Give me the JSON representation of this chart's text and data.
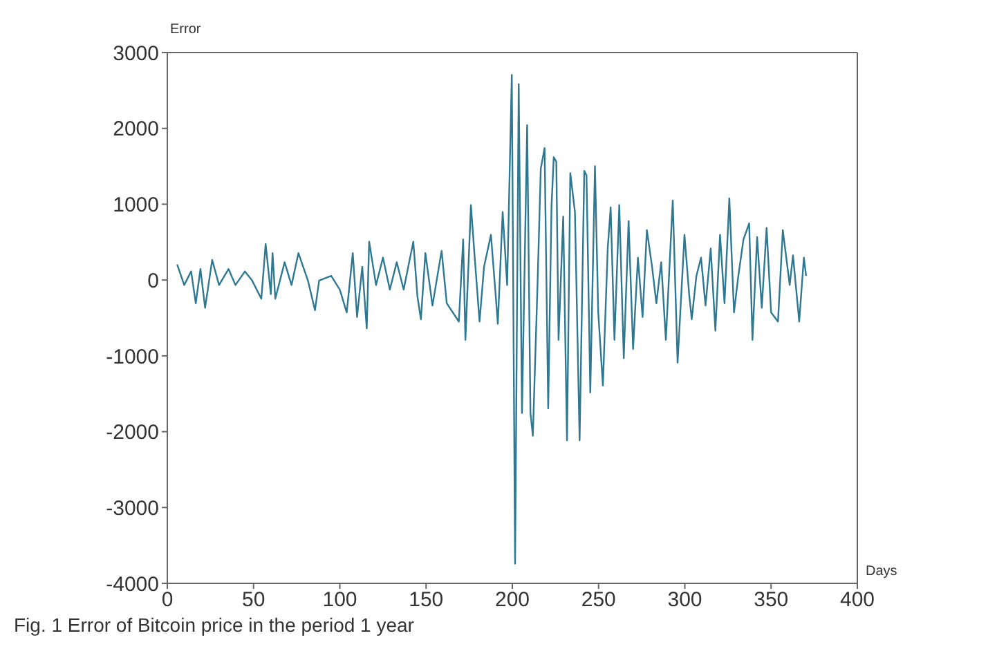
{
  "chart_data": {
    "type": "line",
    "xlabel": "Days",
    "ylabel": "Error",
    "annotations": [
      "Fig. 1 Error of Bitcoin price in the period 1 year"
    ],
    "x": [
      5.7,
      9.8,
      13.8,
      16.5,
      19.2,
      21.9,
      26,
      30,
      35.5,
      39.5,
      45,
      49,
      54.5,
      57,
      60,
      61,
      62.6,
      68,
      72,
      76,
      81.5,
      85.6,
      88,
      95,
      100,
      104,
      107.5,
      110,
      113,
      115.6,
      117,
      121,
      125,
      129,
      133,
      137,
      142.6,
      145,
      147,
      149.6,
      153.7,
      159,
      162,
      169,
      171.5,
      172.8,
      176,
      178,
      181,
      183.6,
      187.6,
      190.3,
      191.6,
      194.4,
      197,
      199.7,
      201.6,
      203.7,
      205.6,
      208.6,
      210.5,
      211.9,
      214.6,
      216.5,
      218.7,
      220.8,
      222.7,
      224,
      225.5,
      226.8,
      229.5,
      231.7,
      233.6,
      236.3,
      239,
      241.7,
      243,
      245.2,
      247.9,
      249.8,
      252.5,
      255.3,
      257,
      259.2,
      262,
      264.6,
      267.4,
      270,
      272.8,
      275.5,
      278,
      281,
      283.5,
      286.3,
      289,
      293,
      295.8,
      299.8,
      302.5,
      304,
      306.7,
      309.4,
      312,
      315,
      317.7,
      320.4,
      323,
      325.8,
      328.5,
      331,
      334,
      337.3,
      339.2,
      341.9,
      344.6,
      347.4,
      350,
      354,
      356.8,
      360.8,
      362.7,
      366.3,
      369,
      370.3
    ],
    "series": [
      {
        "color": "#2f7891",
        "values": [
          205,
          -66,
          114,
          -307,
          145,
          -367,
          265,
          -66,
          145,
          -66,
          114,
          0,
          -247,
          476,
          -187,
          355,
          -247,
          235,
          -66,
          355,
          -6,
          -398,
          -6,
          54,
          -127,
          -428,
          355,
          -488,
          175,
          -639,
          506,
          -66,
          295,
          -127,
          235,
          -127,
          506,
          -217,
          -518,
          355,
          -337,
          385,
          -307,
          -548,
          536,
          -789,
          988,
          355,
          -548,
          175,
          596,
          -187,
          -578,
          898,
          -66,
          2705,
          -3740,
          2584,
          -1753,
          2042,
          -1753,
          -2054,
          -66,
          1470,
          1741,
          -1693,
          958,
          1620,
          1560,
          -789,
          837,
          -2114,
          1410,
          898,
          -2114,
          1440,
          1380,
          -1482,
          1500,
          -427,
          -1392,
          416,
          958,
          -789,
          988,
          -1030,
          777,
          -910,
          295,
          -488,
          657,
          175,
          -307,
          235,
          -789,
          1048,
          -1090,
          596,
          -187,
          -518,
          54,
          295,
          -337,
          416,
          -669,
          596,
          -307,
          1078,
          -427,
          54,
          536,
          747,
          -789,
          566,
          -367,
          687,
          -427,
          -548,
          657,
          -66,
          325,
          -548,
          295,
          54
        ]
      }
    ],
    "xlim": [
      0,
      400
    ],
    "xticks": [
      0,
      50,
      100,
      150,
      200,
      250,
      300,
      350,
      400
    ],
    "ylim": [
      -4000,
      3000
    ],
    "yticks": [
      -4000,
      -3000,
      -2000,
      -1000,
      0,
      1000,
      2000,
      3000
    ],
    "grid": false,
    "marker": "none",
    "line_style": "solid"
  }
}
